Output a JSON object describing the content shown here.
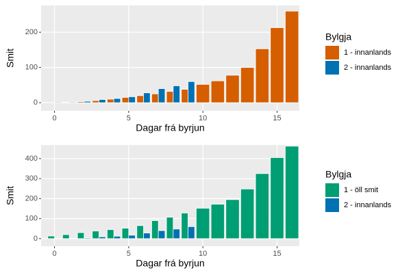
{
  "chart_data": [
    {
      "type": "bar",
      "x_label": "Dagar frá byrjun",
      "y_label": "Smit",
      "legend_title": "Bylgja",
      "x": [
        0,
        1,
        2,
        3,
        4,
        5,
        6,
        7,
        8,
        9,
        10,
        11,
        12,
        13,
        14,
        15,
        16
      ],
      "series": [
        {
          "name": "1 - innanlands",
          "color": "#d55e00",
          "values": [
            0,
            1,
            3,
            6,
            10,
            15,
            20,
            25,
            32,
            38,
            52,
            62,
            78,
            100,
            153,
            213,
            260
          ]
        },
        {
          "name": "2 - innanlands",
          "color": "#0072b2",
          "values": [
            2,
            2,
            4,
            9,
            12,
            17,
            28,
            40,
            48,
            60,
            null,
            null,
            null,
            null,
            null,
            null,
            null
          ]
        }
      ],
      "xlim": [
        -0.9,
        16.5
      ],
      "xticks": [
        0,
        5,
        10,
        15
      ],
      "ylim": [
        -23,
        276
      ],
      "yticks": [
        0,
        100,
        200
      ],
      "grid": true,
      "legend": "right"
    },
    {
      "type": "bar",
      "x_label": "Dagar frá byrjun",
      "y_label": "Smit",
      "legend_title": "Bylgja",
      "x": [
        0,
        1,
        2,
        3,
        4,
        5,
        6,
        7,
        8,
        9,
        10,
        11,
        12,
        13,
        14,
        15,
        16
      ],
      "series": [
        {
          "name": "1 - öll smit",
          "color": "#009e73",
          "values": [
            13,
            20,
            30,
            38,
            45,
            52,
            65,
            90,
            107,
            128,
            152,
            172,
            195,
            248,
            325,
            405,
            462
          ]
        },
        {
          "name": "2 - innanlands",
          "color": "#0072b2",
          "values": [
            2,
            2,
            4,
            9,
            12,
            17,
            28,
            40,
            48,
            60,
            null,
            null,
            null,
            null,
            null,
            null,
            null
          ]
        }
      ],
      "xlim": [
        -0.9,
        16.5
      ],
      "xticks": [
        0,
        5,
        10,
        15
      ],
      "ylim": [
        -38,
        468
      ],
      "yticks": [
        0,
        100,
        200,
        300,
        400
      ],
      "grid": true,
      "legend": "right"
    }
  ]
}
